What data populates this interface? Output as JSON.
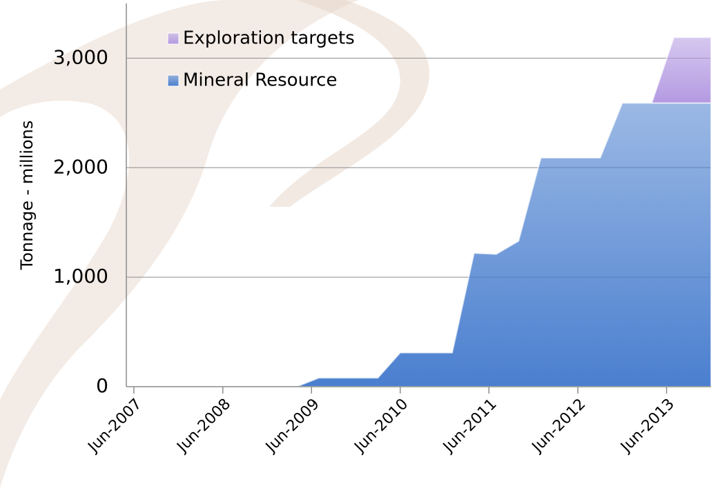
{
  "chart_data": {
    "type": "stacked_area",
    "y_label": "Tonnage - millions",
    "x": [
      "Apr-2009",
      "Jul-2009",
      "Mar-2010",
      "Jun-2010",
      "Jan-2011",
      "Apr-2011",
      "Jul-2011",
      "Oct-2011",
      "Jan-2012",
      "Sep-2012",
      "Dec-2012",
      "Apr-2013",
      "Jul-2013",
      "Dec-2013"
    ],
    "series": [
      {
        "name": "Mineral Resource",
        "color": "#4a7fcf",
        "values": [
          0,
          80,
          80,
          310,
          310,
          1220,
          1210,
          1330,
          2090,
          2090,
          2590,
          2590,
          2590,
          2590
        ]
      },
      {
        "name": "Exploration targets",
        "color": "#b49ae2",
        "values": [
          null,
          null,
          null,
          null,
          null,
          null,
          null,
          null,
          null,
          null,
          null,
          0,
          600,
          600
        ]
      }
    ],
    "xlim": [
      "May-2007",
      "Dec-2013"
    ],
    "xticks": [
      "Jun-2007",
      "Jun-2008",
      "Jun-2009",
      "Jun-2010",
      "Jun-2011",
      "Jun-2012",
      "Jun-2013"
    ],
    "ylim": [
      0,
      3500
    ],
    "yticks": [
      0,
      {
        "value": 1000,
        "label": "1,000"
      },
      {
        "value": 2000,
        "label": "2,000"
      },
      {
        "value": 3000,
        "label": "3,000"
      }
    ],
    "grid": true,
    "legend": "top-left"
  }
}
